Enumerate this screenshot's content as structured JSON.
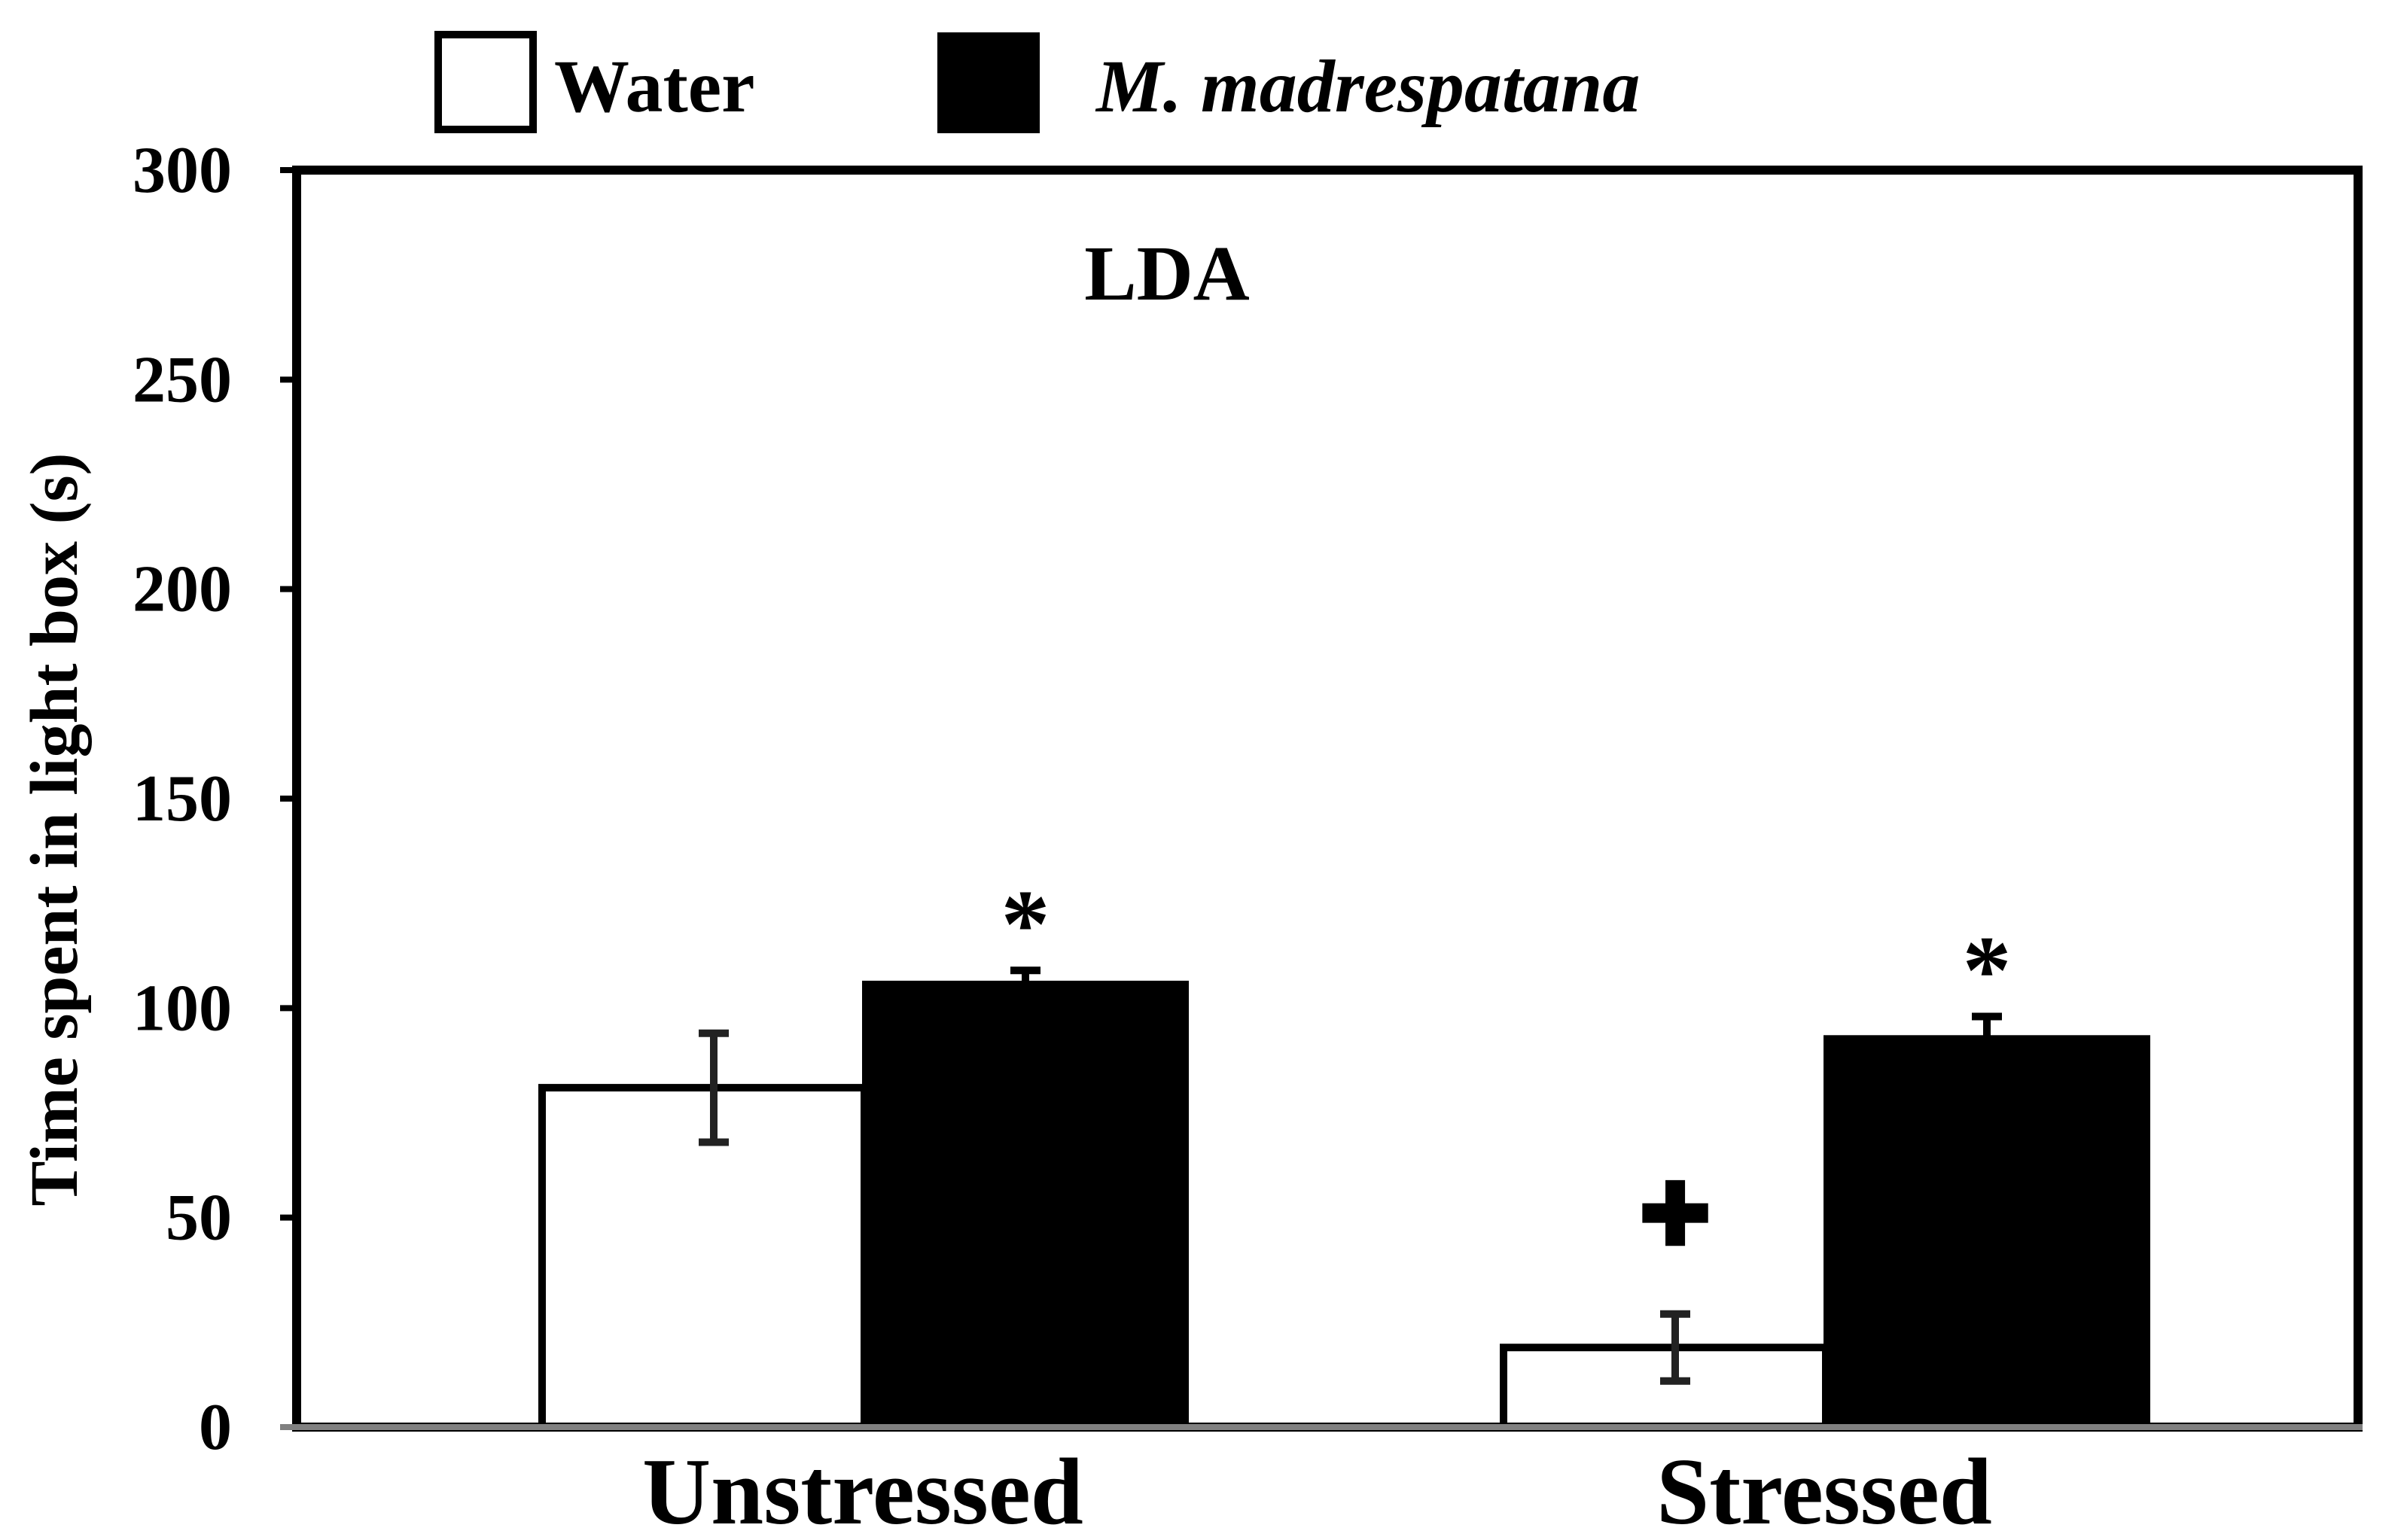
{
  "chart_data": {
    "type": "bar",
    "title": "LDA",
    "ylabel": "Time spent in light box (s)",
    "xlabel": "",
    "ylim": [
      0,
      300
    ],
    "yticks": [
      "0",
      "50",
      "100",
      "150",
      "200",
      "250",
      "300"
    ],
    "categories": [
      "Unstressed",
      "Stressed"
    ],
    "series": [
      {
        "name": "Water",
        "fill": "#ffffff",
        "values": [
          81,
          19
        ],
        "errors": [
          13,
          8
        ],
        "markers": [
          "",
          "✚"
        ]
      },
      {
        "name": "M. madrespatana",
        "italic": true,
        "fill": "#000000",
        "values": [
          106,
          93
        ],
        "errors": [
          3,
          5
        ],
        "markers": [
          "*",
          "*"
        ]
      }
    ],
    "grid": false,
    "legend_position": "top"
  }
}
